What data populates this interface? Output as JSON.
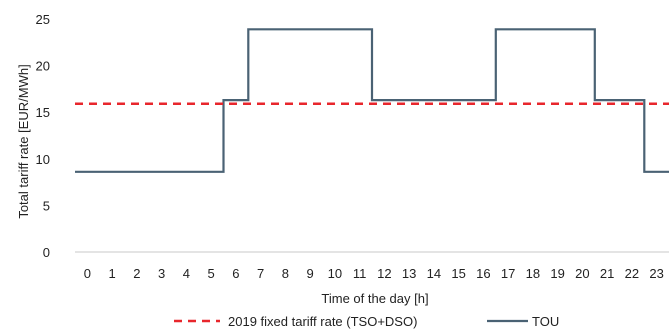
{
  "chart_data": {
    "type": "line",
    "title": "",
    "xlabel": "Time of the day [h]",
    "ylabel": "Total tariff rate [EUR/MWh]",
    "ylim": [
      0,
      25
    ],
    "yticks": [
      0,
      5,
      10,
      15,
      20,
      25
    ],
    "xlim": [
      -0.5,
      23.5
    ],
    "categories": [
      "0",
      "1",
      "2",
      "3",
      "4",
      "5",
      "6",
      "7",
      "8",
      "9",
      "10",
      "11",
      "12",
      "13",
      "14",
      "15",
      "16",
      "17",
      "18",
      "19",
      "20",
      "21",
      "22",
      "23"
    ],
    "grid": false,
    "legend_position": "bottom",
    "series": [
      {
        "name": "2019 fixed tariff rate (TSO+DSO)",
        "style": "dashed",
        "color": "#e8262c",
        "values": [
          15.9,
          15.9,
          15.9,
          15.9,
          15.9,
          15.9,
          15.9,
          15.9,
          15.9,
          15.9,
          15.9,
          15.9,
          15.9,
          15.9,
          15.9,
          15.9,
          15.9,
          15.9,
          15.9,
          15.9,
          15.9,
          15.9,
          15.9,
          15.9
        ]
      },
      {
        "name": "TOU",
        "style": "step",
        "color": "#4a6274",
        "values": [
          8.6,
          8.6,
          8.6,
          8.6,
          8.6,
          8.6,
          16.3,
          23.9,
          23.9,
          23.9,
          23.9,
          23.9,
          16.3,
          16.3,
          16.3,
          16.3,
          16.3,
          23.9,
          23.9,
          23.9,
          23.9,
          16.3,
          16.3,
          8.6
        ]
      }
    ]
  }
}
